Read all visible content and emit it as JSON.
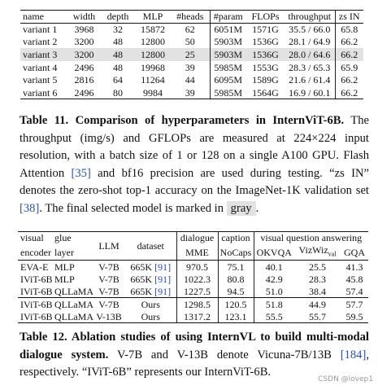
{
  "table1": {
    "header": [
      "name",
      "width",
      "depth",
      "MLP",
      "#heads",
      "#param",
      "FLOPs",
      "throughput",
      "zs IN"
    ],
    "rows": [
      [
        "variant 1",
        "3968",
        "32",
        "15872",
        "62",
        "6051M",
        "1571G",
        "35.5 / 66.0",
        "65.8"
      ],
      [
        "variant 2",
        "3200",
        "48",
        "12800",
        "50",
        "5903M",
        "1536G",
        "28.1 / 64.9",
        "66.2"
      ],
      [
        "variant 3",
        "3200",
        "48",
        "12800",
        "25",
        "5903M",
        "1536G",
        "28.0 / 64.6",
        "66.2"
      ],
      [
        "variant 4",
        "2496",
        "48",
        "19968",
        "39",
        "5985M",
        "1553G",
        "28.3 / 65.3",
        "65.9"
      ],
      [
        "variant 5",
        "2816",
        "64",
        "11264",
        "44",
        "6095M",
        "1589G",
        "21.6 / 61.4",
        "66.2"
      ],
      [
        "variant 6",
        "2496",
        "80",
        "9984",
        "39",
        "5985M",
        "1564G",
        "16.9 / 60.1",
        "66.2"
      ]
    ],
    "highlighted_row": 2
  },
  "caption1": {
    "label": "Table 11.",
    "title": "Comparison of hyperparameters in InternViT-6B.",
    "segments": [
      "The throughput (img/s) and GFLOPs are measured at 224×224 input resolution, with a batch size of 1 or 128 on a single A100 GPU. Flash Attention ",
      {
        "cite": "[35]"
      },
      " and bf16 precision are used during testing. “zs IN” denotes the zero-shot top-1 accuracy on the ImageNet-1K validation set ",
      {
        "cite": "[38]"
      },
      ". The final selected model is marked in ",
      {
        "highlight": "gray"
      },
      "."
    ]
  },
  "table2": {
    "header_top": [
      "visual",
      "glue",
      "LLM",
      "dataset",
      "dialogue",
      "caption",
      "visual question answering"
    ],
    "header_bottom": [
      "encoder",
      "layer",
      "MME",
      "NoCaps",
      "OKVQA",
      {
        "text": "VizWiz",
        "sub": "val"
      },
      "GQA"
    ],
    "row_groups": [
      [
        [
          "EVA-E",
          "MLP",
          "V-7B",
          {
            "text": "665K",
            "cite": "[91]"
          },
          "970.5",
          "75.1",
          "40.1",
          "25.5",
          "41.3"
        ],
        [
          "IViT-6B",
          "MLP",
          "V-7B",
          {
            "text": "665K",
            "cite": "[91]"
          },
          "1022.3",
          "80.8",
          "42.9",
          "28.3",
          "45.8"
        ],
        [
          "IViT-6B",
          "QLLaMA",
          "V-7B",
          {
            "text": "665K",
            "cite": "[91]"
          },
          "1227.5",
          "94.5",
          "51.0",
          "38.4",
          "57.4"
        ]
      ],
      [
        [
          "IViT-6B",
          "QLLaMA",
          "V-7B",
          "Ours",
          "1298.5",
          "120.5",
          "51.8",
          "44.9",
          "57.7"
        ],
        [
          "IViT-6B",
          "QLLaMA",
          "V-13B",
          "Ours",
          "1317.2",
          "123.1",
          "55.5",
          "55.7",
          "59.5"
        ]
      ]
    ]
  },
  "caption2": {
    "label": "Table 12.",
    "title": "Ablation studies of using InternVL to build multi-modal dialogue system.",
    "segments": [
      " V-7B and V-13B denote Vicuna-7B/13B ",
      {
        "cite": "[184]"
      },
      ", respectively. “IViT-6B” represents our InternViT-6B."
    ]
  },
  "watermark": "CSDN @lovep1"
}
